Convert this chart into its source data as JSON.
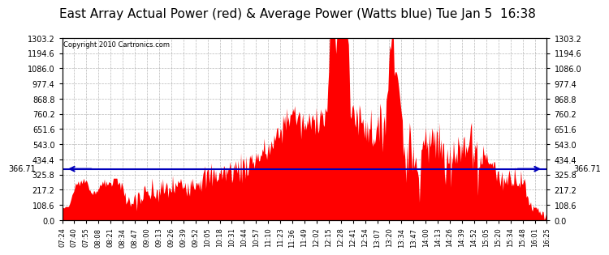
{
  "title": "East Array Actual Power (red) & Average Power (Watts blue) Tue Jan 5  16:38",
  "copyright": "Copyright 2010 Cartronics.com",
  "avg_line_value": 366.71,
  "ymin": 0.0,
  "ymax": 1303.2,
  "ytick_step": 108.6,
  "ytick_labels": [
    "0.0",
    "108.6",
    "217.2",
    "325.8",
    "434.4",
    "543.0",
    "651.6",
    "760.2",
    "868.8",
    "977.4",
    "1086.0",
    "1194.6",
    "1303.2"
  ],
  "fill_color": "#FF0000",
  "line_color": "#0000BB",
  "background_color": "#FFFFFF",
  "grid_color": "#999999",
  "title_fontsize": 11,
  "copyright_fontsize": 6,
  "x_tick_labels": [
    "07:24",
    "07:40",
    "07:55",
    "08:08",
    "08:21",
    "08:34",
    "08:47",
    "09:00",
    "09:13",
    "09:26",
    "09:39",
    "09:52",
    "10:05",
    "10:18",
    "10:31",
    "10:44",
    "10:57",
    "11:10",
    "11:23",
    "11:36",
    "11:49",
    "12:02",
    "12:15",
    "12:28",
    "12:41",
    "12:54",
    "13:07",
    "13:20",
    "13:34",
    "13:47",
    "14:00",
    "14:13",
    "14:26",
    "14:39",
    "14:52",
    "15:05",
    "15:20",
    "15:34",
    "15:48",
    "16:01",
    "16:25"
  ]
}
